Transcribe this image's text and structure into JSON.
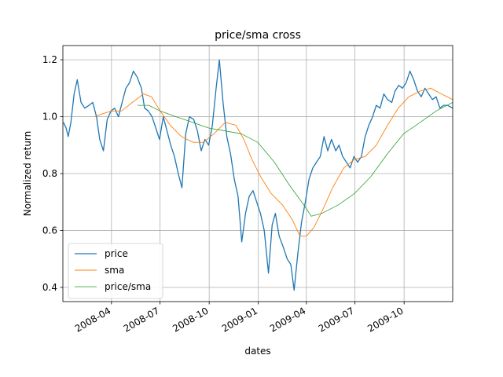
{
  "chart_data": {
    "type": "line",
    "title": "price/sma cross",
    "xlabel": "dates",
    "ylabel": "Normalized return",
    "xlim": [
      "2008-01-01",
      "2009-12-31"
    ],
    "ylim": [
      0.35,
      1.25
    ],
    "grid": true,
    "legend_position": "lower-left",
    "x_ticks": [
      {
        "date": "2008-04-01",
        "label": "2008-04"
      },
      {
        "date": "2008-07-01",
        "label": "2008-07"
      },
      {
        "date": "2008-10-01",
        "label": "2008-10"
      },
      {
        "date": "2009-01-01",
        "label": "2009-01"
      },
      {
        "date": "2009-04-01",
        "label": "2009-04"
      },
      {
        "date": "2009-07-01",
        "label": "2009-07"
      },
      {
        "date": "2009-10-01",
        "label": "2009-10"
      }
    ],
    "y_ticks": [
      {
        "value": 0.4,
        "label": "0.4"
      },
      {
        "value": 0.6,
        "label": "0.6"
      },
      {
        "value": 0.8,
        "label": "0.8"
      },
      {
        "value": 1.0,
        "label": "1.0"
      },
      {
        "value": 1.2,
        "label": "1.2"
      }
    ],
    "series": [
      {
        "name": "price",
        "color": "#1f77b4",
        "points": [
          [
            "2008-01-02",
            0.98
          ],
          [
            "2008-01-07",
            0.96
          ],
          [
            "2008-01-11",
            0.93
          ],
          [
            "2008-01-16",
            0.98
          ],
          [
            "2008-01-22",
            1.08
          ],
          [
            "2008-01-28",
            1.13
          ],
          [
            "2008-02-04",
            1.05
          ],
          [
            "2008-02-11",
            1.03
          ],
          [
            "2008-02-19",
            1.04
          ],
          [
            "2008-02-26",
            1.05
          ],
          [
            "2008-03-04",
            1.0
          ],
          [
            "2008-03-10",
            0.92
          ],
          [
            "2008-03-17",
            0.88
          ],
          [
            "2008-03-24",
            0.99
          ],
          [
            "2008-03-31",
            1.02
          ],
          [
            "2008-04-07",
            1.03
          ],
          [
            "2008-04-14",
            1.0
          ],
          [
            "2008-04-21",
            1.05
          ],
          [
            "2008-04-28",
            1.1
          ],
          [
            "2008-05-05",
            1.12
          ],
          [
            "2008-05-12",
            1.16
          ],
          [
            "2008-05-19",
            1.14
          ],
          [
            "2008-05-27",
            1.1
          ],
          [
            "2008-06-02",
            1.03
          ],
          [
            "2008-06-09",
            1.02
          ],
          [
            "2008-06-16",
            1.0
          ],
          [
            "2008-06-23",
            0.96
          ],
          [
            "2008-06-30",
            0.92
          ],
          [
            "2008-07-07",
            1.0
          ],
          [
            "2008-07-14",
            0.95
          ],
          [
            "2008-07-21",
            0.9
          ],
          [
            "2008-07-28",
            0.86
          ],
          [
            "2008-08-04",
            0.8
          ],
          [
            "2008-08-11",
            0.75
          ],
          [
            "2008-08-18",
            0.94
          ],
          [
            "2008-08-25",
            1.0
          ],
          [
            "2008-09-02",
            0.99
          ],
          [
            "2008-09-09",
            0.95
          ],
          [
            "2008-09-16",
            0.88
          ],
          [
            "2008-09-23",
            0.92
          ],
          [
            "2008-09-30",
            0.9
          ],
          [
            "2008-10-07",
            0.97
          ],
          [
            "2008-10-14",
            1.1
          ],
          [
            "2008-10-20",
            1.2
          ],
          [
            "2008-10-27",
            1.05
          ],
          [
            "2008-11-03",
            0.93
          ],
          [
            "2008-11-10",
            0.87
          ],
          [
            "2008-11-17",
            0.78
          ],
          [
            "2008-11-24",
            0.72
          ],
          [
            "2008-12-01",
            0.56
          ],
          [
            "2008-12-08",
            0.66
          ],
          [
            "2008-12-15",
            0.72
          ],
          [
            "2008-12-22",
            0.74
          ],
          [
            "2008-12-29",
            0.7
          ],
          [
            "2009-01-05",
            0.66
          ],
          [
            "2009-01-12",
            0.6
          ],
          [
            "2009-01-20",
            0.45
          ],
          [
            "2009-01-27",
            0.62
          ],
          [
            "2009-02-02",
            0.66
          ],
          [
            "2009-02-09",
            0.58
          ],
          [
            "2009-02-17",
            0.54
          ],
          [
            "2009-02-24",
            0.5
          ],
          [
            "2009-03-03",
            0.48
          ],
          [
            "2009-03-09",
            0.39
          ],
          [
            "2009-03-16",
            0.52
          ],
          [
            "2009-03-23",
            0.63
          ],
          [
            "2009-03-30",
            0.7
          ],
          [
            "2009-04-06",
            0.78
          ],
          [
            "2009-04-13",
            0.82
          ],
          [
            "2009-04-20",
            0.84
          ],
          [
            "2009-04-27",
            0.86
          ],
          [
            "2009-05-04",
            0.93
          ],
          [
            "2009-05-11",
            0.88
          ],
          [
            "2009-05-18",
            0.92
          ],
          [
            "2009-05-26",
            0.88
          ],
          [
            "2009-06-01",
            0.9
          ],
          [
            "2009-06-08",
            0.86
          ],
          [
            "2009-06-15",
            0.84
          ],
          [
            "2009-06-22",
            0.82
          ],
          [
            "2009-06-29",
            0.86
          ],
          [
            "2009-07-06",
            0.84
          ],
          [
            "2009-07-13",
            0.86
          ],
          [
            "2009-07-20",
            0.93
          ],
          [
            "2009-07-27",
            0.97
          ],
          [
            "2009-08-03",
            1.0
          ],
          [
            "2009-08-10",
            1.04
          ],
          [
            "2009-08-17",
            1.03
          ],
          [
            "2009-08-24",
            1.08
          ],
          [
            "2009-08-31",
            1.06
          ],
          [
            "2009-09-08",
            1.05
          ],
          [
            "2009-09-14",
            1.09
          ],
          [
            "2009-09-21",
            1.11
          ],
          [
            "2009-09-28",
            1.1
          ],
          [
            "2009-10-05",
            1.12
          ],
          [
            "2009-10-12",
            1.16
          ],
          [
            "2009-10-19",
            1.13
          ],
          [
            "2009-10-26",
            1.09
          ],
          [
            "2009-11-02",
            1.07
          ],
          [
            "2009-11-09",
            1.1
          ],
          [
            "2009-11-16",
            1.08
          ],
          [
            "2009-11-23",
            1.06
          ],
          [
            "2009-11-30",
            1.07
          ],
          [
            "2009-12-07",
            1.03
          ],
          [
            "2009-12-14",
            1.04
          ],
          [
            "2009-12-21",
            1.04
          ],
          [
            "2009-12-31",
            1.03
          ]
        ]
      },
      {
        "name": "sma",
        "color": "#ff7f0e",
        "points": [
          [
            "2008-02-29",
            1.0
          ],
          [
            "2008-03-15",
            1.01
          ],
          [
            "2008-04-01",
            1.02
          ],
          [
            "2008-04-20",
            1.02
          ],
          [
            "2008-05-10",
            1.05
          ],
          [
            "2008-05-31",
            1.08
          ],
          [
            "2008-06-15",
            1.07
          ],
          [
            "2008-07-01",
            1.02
          ],
          [
            "2008-07-20",
            0.97
          ],
          [
            "2008-08-10",
            0.93
          ],
          [
            "2008-09-01",
            0.91
          ],
          [
            "2008-09-20",
            0.91
          ],
          [
            "2008-10-10",
            0.94
          ],
          [
            "2008-10-31",
            0.98
          ],
          [
            "2008-11-20",
            0.97
          ],
          [
            "2008-12-05",
            0.92
          ],
          [
            "2008-12-20",
            0.85
          ],
          [
            "2009-01-05",
            0.79
          ],
          [
            "2009-01-25",
            0.73
          ],
          [
            "2009-02-15",
            0.69
          ],
          [
            "2009-03-05",
            0.64
          ],
          [
            "2009-03-20",
            0.58
          ],
          [
            "2009-04-01",
            0.58
          ],
          [
            "2009-04-15",
            0.61
          ],
          [
            "2009-05-01",
            0.67
          ],
          [
            "2009-05-20",
            0.75
          ],
          [
            "2009-06-10",
            0.82
          ],
          [
            "2009-06-30",
            0.85
          ],
          [
            "2009-07-20",
            0.86
          ],
          [
            "2009-08-10",
            0.9
          ],
          [
            "2009-08-31",
            0.97
          ],
          [
            "2009-09-20",
            1.03
          ],
          [
            "2009-10-10",
            1.07
          ],
          [
            "2009-10-31",
            1.09
          ],
          [
            "2009-11-20",
            1.1
          ],
          [
            "2009-12-10",
            1.08
          ],
          [
            "2009-12-31",
            1.06
          ]
        ]
      },
      {
        "name": "price/sma",
        "color": "#2ca02c",
        "points": [
          [
            "2008-05-20",
            1.04
          ],
          [
            "2008-06-10",
            1.04
          ],
          [
            "2008-07-01",
            1.02
          ],
          [
            "2008-07-31",
            1.0
          ],
          [
            "2008-08-31",
            0.98
          ],
          [
            "2008-09-30",
            0.96
          ],
          [
            "2008-10-31",
            0.95
          ],
          [
            "2008-11-30",
            0.94
          ],
          [
            "2008-12-31",
            0.91
          ],
          [
            "2009-01-31",
            0.84
          ],
          [
            "2009-02-28",
            0.76
          ],
          [
            "2009-03-31",
            0.68
          ],
          [
            "2009-04-10",
            0.65
          ],
          [
            "2009-04-30",
            0.66
          ],
          [
            "2009-05-31",
            0.69
          ],
          [
            "2009-06-30",
            0.73
          ],
          [
            "2009-07-31",
            0.79
          ],
          [
            "2009-08-31",
            0.87
          ],
          [
            "2009-09-30",
            0.94
          ],
          [
            "2009-10-31",
            0.98
          ],
          [
            "2009-11-30",
            1.02
          ],
          [
            "2009-12-31",
            1.05
          ]
        ]
      }
    ]
  }
}
